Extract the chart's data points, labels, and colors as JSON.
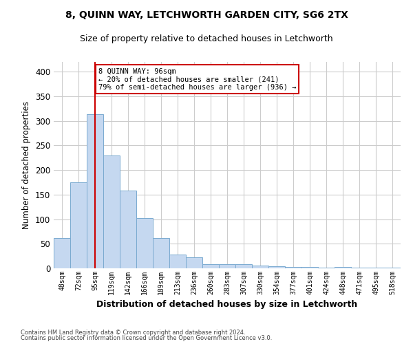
{
  "title1": "8, QUINN WAY, LETCHWORTH GARDEN CITY, SG6 2TX",
  "title2": "Size of property relative to detached houses in Letchworth",
  "xlabel": "Distribution of detached houses by size in Letchworth",
  "ylabel": "Number of detached properties",
  "categories": [
    "48sqm",
    "72sqm",
    "95sqm",
    "119sqm",
    "142sqm",
    "166sqm",
    "189sqm",
    "213sqm",
    "236sqm",
    "260sqm",
    "283sqm",
    "307sqm",
    "330sqm",
    "354sqm",
    "377sqm",
    "401sqm",
    "424sqm",
    "448sqm",
    "471sqm",
    "495sqm",
    "518sqm"
  ],
  "values": [
    62,
    175,
    313,
    230,
    158,
    102,
    61,
    28,
    22,
    8,
    9,
    8,
    6,
    4,
    3,
    3,
    2,
    3,
    1,
    2,
    2
  ],
  "bar_color": "#c5d8f0",
  "bar_edge_color": "#7aaad0",
  "vline_color": "#cc0000",
  "vline_index": 2,
  "annotation_text": "8 QUINN WAY: 96sqm\n← 20% of detached houses are smaller (241)\n79% of semi-detached houses are larger (936) →",
  "annotation_box_color": "#ffffff",
  "annotation_box_edge_color": "#cc0000",
  "ylim": [
    0,
    420
  ],
  "yticks": [
    0,
    50,
    100,
    150,
    200,
    250,
    300,
    350,
    400
  ],
  "background_color": "#ffffff",
  "grid_color": "#cccccc",
  "footer1": "Contains HM Land Registry data © Crown copyright and database right 2024.",
  "footer2": "Contains public sector information licensed under the Open Government Licence v3.0."
}
